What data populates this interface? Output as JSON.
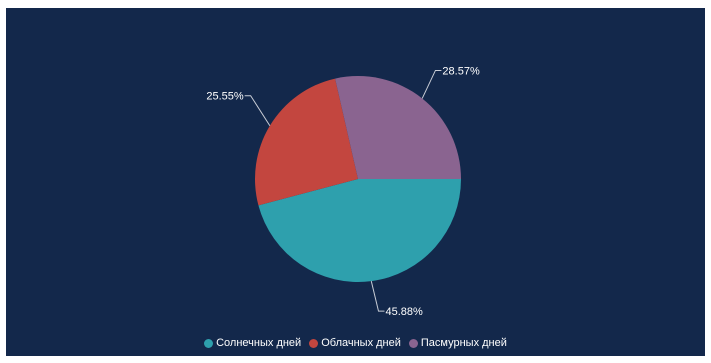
{
  "chart_data": {
    "type": "pie",
    "categories": [
      "Солнечных дней",
      "Облачных дней",
      "Пасмурных дней"
    ],
    "values": [
      45.88,
      25.55,
      28.57
    ],
    "labels": [
      "45.88%",
      "25.55%",
      "28.57%"
    ],
    "colors": [
      "#2ea0ad",
      "#c3463f",
      "#8a6490"
    ],
    "legend": "bottom"
  },
  "colors": {
    "background": "#13284b",
    "label_text": "#ffffff",
    "leader_line": "#c9cdd6"
  }
}
